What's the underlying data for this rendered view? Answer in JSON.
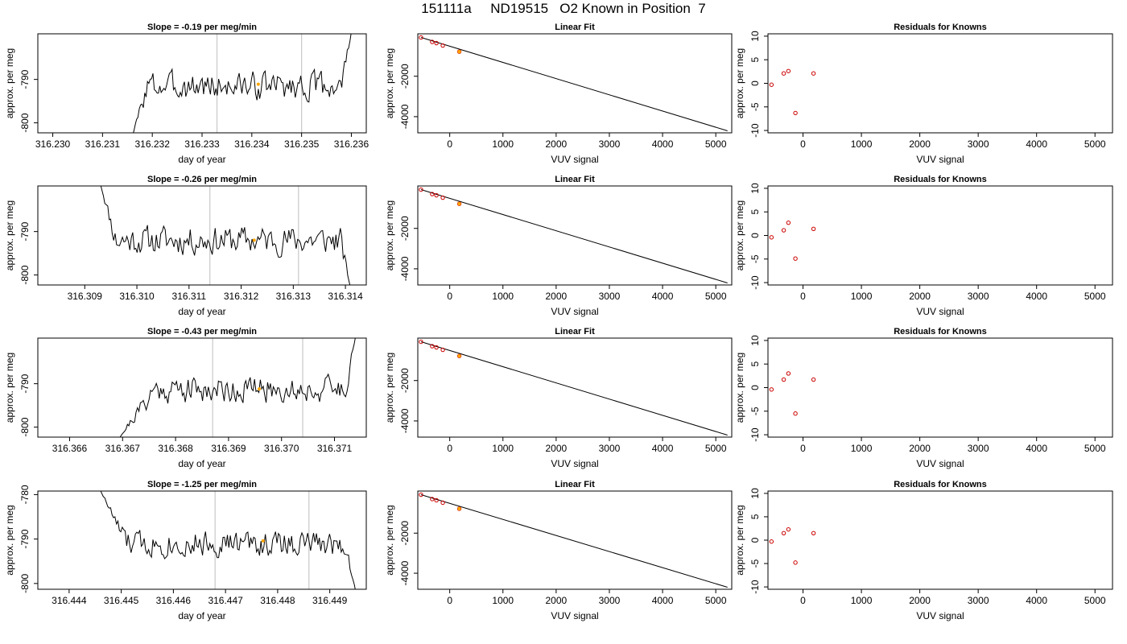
{
  "page": {
    "title": "151111a     ND19515   O2 Known in Position  7"
  },
  "colors": {
    "trace": "#000000",
    "reference_line": "#c8c8c8",
    "highlight_point": "#ffa500",
    "known_point": "#cc0000",
    "axis": "#000000"
  },
  "chart_data": [
    {
      "type": "line",
      "title": "Slope =  -0.19  per meg/min",
      "xlabel": "day of year",
      "ylabel": "approx. per meg",
      "xlim": [
        316.2297,
        316.2363
      ],
      "ylim": [
        -802.3,
        -779.5
      ],
      "xticks": [
        316.23,
        316.231,
        316.232,
        316.233,
        316.234,
        316.235,
        316.236
      ],
      "xtick_labels": [
        "316.230",
        "316.231",
        "316.232",
        "316.233",
        "316.234",
        "316.235",
        "316.236"
      ],
      "yticks": [
        -790,
        -800
      ],
      "ytick_labels": [
        "-790",
        "-800"
      ],
      "vlines": [
        316.2333,
        316.235
      ],
      "trace": {
        "x_start": 316.2316,
        "x_end": 316.236,
        "y_start": -803,
        "y_end": -779,
        "base": -791.5,
        "noise_amp": 2.8,
        "samples": 160,
        "seed": 3,
        "rise_to": 316.2319,
        "climb_from": 316.2358
      },
      "highlight": {
        "x": 316.23413,
        "y": -791.1
      }
    },
    {
      "type": "scatter",
      "title": "Linear Fit",
      "xlabel": "VUV signal",
      "ylabel": "approx. per meg",
      "xlim": [
        -600,
        5300
      ],
      "ylim": [
        -4800,
        100
      ],
      "xticks": [
        0,
        1000,
        2000,
        3000,
        4000,
        5000
      ],
      "xtick_labels": [
        "0",
        "1000",
        "2000",
        "3000",
        "4000",
        "5000"
      ],
      "yticks": [
        -2000,
        -4000
      ],
      "ytick_labels": [
        "-2000",
        "-4000"
      ],
      "x": [
        -540,
        -330,
        -250,
        -130,
        180
      ],
      "y": [
        -82,
        -300,
        -360,
        -480,
        -783
      ],
      "fit_line": {
        "x": [
          -540,
          5220
        ],
        "y": [
          -80,
          -4700
        ]
      },
      "highlight": {
        "x": 180,
        "y": -783
      }
    },
    {
      "type": "scatter",
      "title": "Residuals for Knowns",
      "xlabel": "VUV signal",
      "ylabel": "approx. per meg",
      "xlim": [
        -600,
        5300
      ],
      "ylim": [
        -10.5,
        10.5
      ],
      "xticks": [
        0,
        1000,
        2000,
        3000,
        4000,
        5000
      ],
      "xtick_labels": [
        "0",
        "1000",
        "2000",
        "3000",
        "4000",
        "5000"
      ],
      "yticks": [
        10,
        5,
        0,
        -5,
        -10
      ],
      "ytick_labels": [
        "10",
        "5",
        "0",
        "-5",
        "-10"
      ],
      "x": [
        -540,
        -330,
        -250,
        -130,
        180
      ],
      "y": [
        -0.3,
        2.1,
        2.6,
        -6.3,
        2.1
      ]
    },
    {
      "type": "line",
      "title": "Slope =  -0.26  per meg/min",
      "xlabel": "day of year",
      "ylabel": "approx. per meg",
      "xlim": [
        316.3081,
        316.3144
      ],
      "ylim": [
        -802.3,
        -779.5
      ],
      "xticks": [
        316.309,
        316.31,
        316.311,
        316.312,
        316.313,
        316.314
      ],
      "xtick_labels": [
        "316.309",
        "316.310",
        "316.311",
        "316.312",
        "316.313",
        "316.314"
      ],
      "yticks": [
        -790,
        -800
      ],
      "ytick_labels": [
        "-790",
        "-800"
      ],
      "vlines": [
        316.3114,
        316.3131
      ],
      "trace": {
        "x_start": 316.3093,
        "x_end": 316.3141,
        "y_start": -779,
        "y_end": -803,
        "base": -792.0,
        "noise_amp": 2.9,
        "samples": 170,
        "seed": 11,
        "rise_to": 316.3096,
        "climb_from": 316.3139
      },
      "highlight": {
        "x": 316.31225,
        "y": -792.0
      }
    },
    {
      "type": "scatter",
      "title": "Linear Fit",
      "xlabel": "VUV signal",
      "ylabel": "approx. per meg",
      "xlim": [
        -600,
        5300
      ],
      "ylim": [
        -4800,
        100
      ],
      "xticks": [
        0,
        1000,
        2000,
        3000,
        4000,
        5000
      ],
      "xtick_labels": [
        "0",
        "1000",
        "2000",
        "3000",
        "4000",
        "5000"
      ],
      "yticks": [
        -2000,
        -4000
      ],
      "ytick_labels": [
        "-2000",
        "-4000"
      ],
      "x": [
        -540,
        -330,
        -250,
        -130,
        180
      ],
      "y": [
        -82,
        -300,
        -360,
        -480,
        -783
      ],
      "fit_line": {
        "x": [
          -540,
          5220
        ],
        "y": [
          -80,
          -4700
        ]
      },
      "highlight": {
        "x": 180,
        "y": -783
      }
    },
    {
      "type": "scatter",
      "title": "Residuals for Knowns",
      "xlabel": "VUV signal",
      "ylabel": "approx. per meg",
      "xlim": [
        -600,
        5300
      ],
      "ylim": [
        -10.5,
        10.5
      ],
      "xticks": [
        0,
        1000,
        2000,
        3000,
        4000,
        5000
      ],
      "xtick_labels": [
        "0",
        "1000",
        "2000",
        "3000",
        "4000",
        "5000"
      ],
      "yticks": [
        10,
        5,
        0,
        -5,
        -10
      ],
      "ytick_labels": [
        "10",
        "5",
        "0",
        "-5",
        "-10"
      ],
      "x": [
        -540,
        -330,
        -250,
        -130,
        180
      ],
      "y": [
        -0.4,
        1.1,
        2.7,
        -4.9,
        1.4
      ]
    },
    {
      "type": "line",
      "title": "Slope =  -0.43  per meg/min",
      "xlabel": "day of year",
      "ylabel": "approx. per meg",
      "xlim": [
        316.3654,
        316.3716
      ],
      "ylim": [
        -802.3,
        -779.5
      ],
      "xticks": [
        316.366,
        316.367,
        316.368,
        316.369,
        316.37,
        316.371
      ],
      "xtick_labels": [
        "316.366",
        "316.367",
        "316.368",
        "316.369",
        "316.370",
        "316.371"
      ],
      "yticks": [
        -790,
        -800
      ],
      "ytick_labels": [
        "-790",
        "-800"
      ],
      "vlines": [
        316.3687,
        316.3704
      ],
      "trace": {
        "x_start": 316.3669,
        "x_end": 316.3714,
        "y_start": -803,
        "y_end": -779,
        "base": -791.3,
        "noise_amp": 2.7,
        "samples": 165,
        "seed": 21,
        "rise_to": 316.3676,
        "climb_from": 316.3712
      },
      "highlight": {
        "x": 316.36958,
        "y": -791.2
      }
    },
    {
      "type": "scatter",
      "title": "Linear Fit",
      "xlabel": "VUV signal",
      "ylabel": "approx. per meg",
      "xlim": [
        -600,
        5300
      ],
      "ylim": [
        -4800,
        100
      ],
      "xticks": [
        0,
        1000,
        2000,
        3000,
        4000,
        5000
      ],
      "xtick_labels": [
        "0",
        "1000",
        "2000",
        "3000",
        "4000",
        "5000"
      ],
      "yticks": [
        -2000,
        -4000
      ],
      "ytick_labels": [
        "-2000",
        "-4000"
      ],
      "x": [
        -540,
        -330,
        -250,
        -130,
        180
      ],
      "y": [
        -82,
        -300,
        -360,
        -480,
        -783
      ],
      "fit_line": {
        "x": [
          -540,
          5220
        ],
        "y": [
          -80,
          -4700
        ]
      },
      "highlight": {
        "x": 180,
        "y": -783
      }
    },
    {
      "type": "scatter",
      "title": "Residuals for Knowns",
      "xlabel": "VUV signal",
      "ylabel": "approx. per meg",
      "xlim": [
        -600,
        5300
      ],
      "ylim": [
        -10.5,
        10.5
      ],
      "xticks": [
        0,
        1000,
        2000,
        3000,
        4000,
        5000
      ],
      "xtick_labels": [
        "0",
        "1000",
        "2000",
        "3000",
        "4000",
        "5000"
      ],
      "yticks": [
        10,
        5,
        0,
        -5,
        -10
      ],
      "ytick_labels": [
        "10",
        "5",
        "0",
        "-5",
        "-10"
      ],
      "x": [
        -540,
        -330,
        -250,
        -130,
        180
      ],
      "y": [
        -0.4,
        1.7,
        3.0,
        -5.5,
        1.7
      ]
    },
    {
      "type": "line",
      "title": "Slope =  -1.25  per meg/min",
      "xlabel": "day of year",
      "ylabel": "approx. per meg",
      "xlim": [
        316.4434,
        316.4497
      ],
      "ylim": [
        -801.3,
        -779.2
      ],
      "xticks": [
        316.444,
        316.445,
        316.446,
        316.447,
        316.448,
        316.449
      ],
      "xtick_labels": [
        "316.444",
        "316.445",
        "316.446",
        "316.447",
        "316.448",
        "316.449"
      ],
      "yticks": [
        -780,
        -790,
        -800
      ],
      "ytick_labels": [
        "-780",
        "-790",
        "-800"
      ],
      "vlines": [
        316.4468,
        316.4486
      ],
      "trace": {
        "x_start": 316.4446,
        "x_end": 316.4495,
        "y_start": -779,
        "y_end": -802,
        "base": -791.0,
        "noise_amp": 2.6,
        "samples": 175,
        "seed": 33,
        "rise_to": 316.4451,
        "climb_from": 316.4493
      },
      "highlight": {
        "x": 316.44772,
        "y": -790.4
      }
    },
    {
      "type": "scatter",
      "title": "Linear Fit",
      "xlabel": "VUV signal",
      "ylabel": "approx. per meg",
      "xlim": [
        -600,
        5300
      ],
      "ylim": [
        -4800,
        100
      ],
      "xticks": [
        0,
        1000,
        2000,
        3000,
        4000,
        5000
      ],
      "xtick_labels": [
        "0",
        "1000",
        "2000",
        "3000",
        "4000",
        "5000"
      ],
      "yticks": [
        -2000,
        -4000
      ],
      "ytick_labels": [
        "-2000",
        "-4000"
      ],
      "x": [
        -540,
        -330,
        -250,
        -130,
        180
      ],
      "y": [
        -82,
        -300,
        -360,
        -480,
        -783
      ],
      "fit_line": {
        "x": [
          -540,
          5220
        ],
        "y": [
          -80,
          -4700
        ]
      },
      "highlight": {
        "x": 180,
        "y": -783
      }
    },
    {
      "type": "scatter",
      "title": "Residuals for Knowns",
      "xlabel": "VUV signal",
      "ylabel": "approx. per meg",
      "xlim": [
        -600,
        5300
      ],
      "ylim": [
        -10.5,
        10.5
      ],
      "xticks": [
        0,
        1000,
        2000,
        3000,
        4000,
        5000
      ],
      "xtick_labels": [
        "0",
        "1000",
        "2000",
        "3000",
        "4000",
        "5000"
      ],
      "yticks": [
        10,
        5,
        0,
        -5,
        -10
      ],
      "ytick_labels": [
        "10",
        "5",
        "0",
        "-5",
        "-10"
      ],
      "x": [
        -540,
        -330,
        -250,
        -130,
        180
      ],
      "y": [
        -0.3,
        1.5,
        2.3,
        -4.8,
        1.5
      ]
    }
  ]
}
